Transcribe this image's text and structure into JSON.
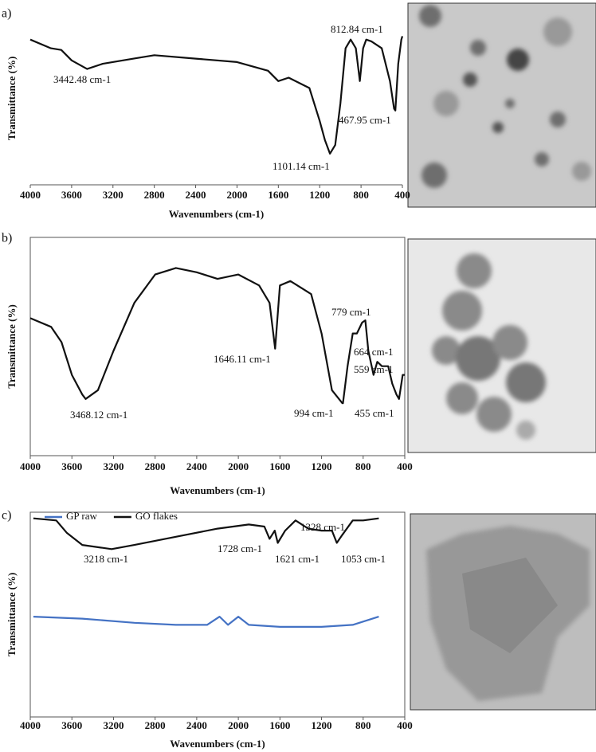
{
  "chart_data": [
    {
      "type": "line",
      "panel_label": "a)",
      "x_label": "Wavenumbers (cm-1)",
      "y_label": "Transmittance (%)",
      "xlim": [
        4000,
        400
      ],
      "xticks": [
        4000,
        3600,
        3200,
        2800,
        2400,
        2000,
        1600,
        1200,
        800,
        400
      ],
      "ylim": [
        0,
        100
      ],
      "color": "#111111",
      "x": [
        4000,
        3800,
        3700,
        3600,
        3450,
        3300,
        3000,
        2800,
        2400,
        2000,
        1700,
        1600,
        1500,
        1300,
        1200,
        1150,
        1101,
        1050,
        1000,
        950,
        900,
        850,
        812,
        780,
        750,
        700,
        600,
        520,
        480,
        468,
        440,
        410,
        400
      ],
      "values": [
        84,
        79,
        78,
        72,
        67,
        70,
        73,
        75,
        73,
        71,
        66,
        60,
        62,
        56,
        37,
        26,
        18,
        23,
        47,
        79,
        84,
        79,
        60,
        79,
        84,
        83,
        79,
        60,
        44,
        43,
        70,
        84,
        86
      ],
      "annotations": [
        "3442.48 cm-1",
        "812.84 cm-1",
        "467.95 cm-1",
        "1101.14 cm-1"
      ]
    },
    {
      "type": "line",
      "panel_label": "b)",
      "x_label": "Wavenumbers (cm-1)",
      "y_label": "Transmittance (%)",
      "xlim": [
        4000,
        400
      ],
      "xticks": [
        4000,
        3600,
        3200,
        2800,
        2400,
        2000,
        1600,
        1200,
        800,
        400
      ],
      "ylim": [
        0,
        100
      ],
      "color": "#111111",
      "x": [
        4000,
        3800,
        3700,
        3600,
        3500,
        3468,
        3350,
        3200,
        3000,
        2800,
        2600,
        2400,
        2200,
        2000,
        1800,
        1700,
        1646,
        1600,
        1500,
        1300,
        1200,
        1100,
        1000,
        994,
        950,
        900,
        860,
        810,
        779,
        750,
        700,
        664,
        620,
        559,
        520,
        480,
        455,
        420,
        400
      ],
      "values": [
        63,
        59,
        52,
        37,
        28,
        26,
        30,
        48,
        70,
        83,
        86,
        84,
        81,
        83,
        78,
        70,
        49,
        78,
        80,
        74,
        56,
        30,
        24,
        24,
        41,
        56,
        56,
        61,
        62,
        48,
        37,
        43,
        41,
        41,
        33,
        28,
        26,
        37,
        37
      ],
      "annotations": [
        "1646.11 cm-1",
        "3468.12 cm-1",
        "779 cm-1",
        "664 cm-1",
        "559 cm-1",
        "994 cm-1",
        "455 cm-1"
      ]
    },
    {
      "type": "line",
      "panel_label": "c)",
      "x_label": "Wavenumbers (cm-1)",
      "y_label": "Transmittance (%)",
      "xlim": [
        4000,
        400
      ],
      "xticks": [
        4000,
        3600,
        3200,
        2800,
        2400,
        2000,
        1600,
        1200,
        800,
        400
      ],
      "ylim": [
        0,
        100
      ],
      "legend": "top-left",
      "series": [
        {
          "name": "GP raw",
          "color": "#4472c4",
          "x": [
            3970,
            3500,
            3000,
            2600,
            2300,
            2180,
            2100,
            2000,
            1900,
            1600,
            1200,
            900,
            650
          ],
          "values": [
            49,
            48,
            46,
            45,
            45,
            49,
            45,
            49,
            45,
            44,
            44,
            45,
            49
          ]
        },
        {
          "name": "GO flakes",
          "color": "#111111",
          "x": [
            3970,
            3750,
            3650,
            3500,
            3218,
            3000,
            2600,
            2200,
            1900,
            1750,
            1700,
            1650,
            1621,
            1550,
            1450,
            1328,
            1200,
            1100,
            1053,
            1000,
            900,
            800,
            650
          ],
          "values": [
            97,
            96,
            90,
            84,
            82,
            84,
            88,
            92,
            94,
            93,
            87,
            91,
            85,
            91,
            96,
            92,
            91,
            91,
            85,
            89,
            96,
            96,
            97
          ]
        }
      ],
      "annotations": [
        "3218 cm-1",
        "1728 cm-1",
        "1328 cm-1",
        "1621 cm-1",
        "1053 cm-1"
      ]
    }
  ]
}
